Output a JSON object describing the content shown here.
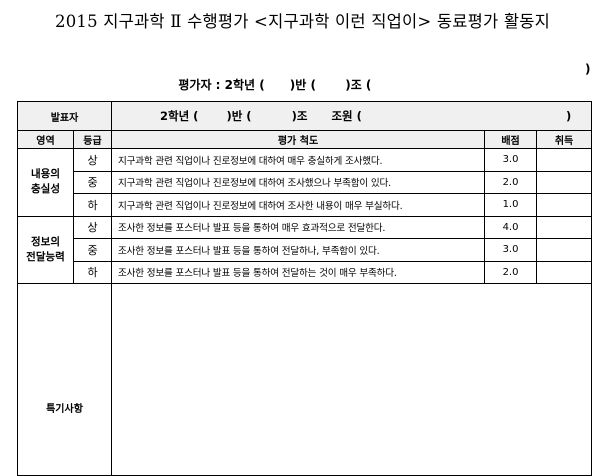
{
  "title": "2015 지구과학 Ⅱ 수행평가 <지구과학 이런 직업이> 동료평가 활동지",
  "evaluator": {
    "label": "평가자 : 2학년 (      )반 (       )조 (",
    "close": ")"
  },
  "table": {
    "presenter_label": "발표자",
    "presenter_value": "2학년 (       )반 (          )조      조원 (                                                   )",
    "headers": [
      "영역",
      "등급",
      "평가 척도",
      "배점",
      "취득"
    ],
    "sections": [
      {
        "area": [
          "내용의",
          "충실성"
        ],
        "rows": [
          {
            "grade": "상",
            "criterion": "지구과학 관련 직업이나 진로정보에 대하여 매우 충실하게 조사했다.",
            "score": "3.0",
            "earned": ""
          },
          {
            "grade": "중",
            "criterion": "지구과학 관련 직업이나 진로정보에 대하여 조사했으나 부족함이 있다.",
            "score": "2.0",
            "earned": ""
          },
          {
            "grade": "하",
            "criterion": "지구과학 관련 직업이나 진로정보에 대하여 조사한 내용이 매우 부실하다.",
            "score": "1.0",
            "earned": ""
          }
        ]
      },
      {
        "area": [
          "정보의",
          "전달능력"
        ],
        "rows": [
          {
            "grade": "상",
            "criterion": "조사한 정보를 포스터나 발표 등을 통하여 매우 효과적으로 전달한다.",
            "score": "4.0",
            "earned": ""
          },
          {
            "grade": "중",
            "criterion": "조사한 정보를 포스터나 발표 등을 통하여 전달하나, 부족함이 있다.",
            "score": "3.0",
            "earned": ""
          },
          {
            "grade": "하",
            "criterion": "조사한 정보를 포스터나 발표 등을 통하여 전달하는 것이 매우 부족하다.",
            "score": "2.0",
            "earned": ""
          }
        ]
      }
    ],
    "notes_label": "특기사항",
    "notes_value": ""
  }
}
